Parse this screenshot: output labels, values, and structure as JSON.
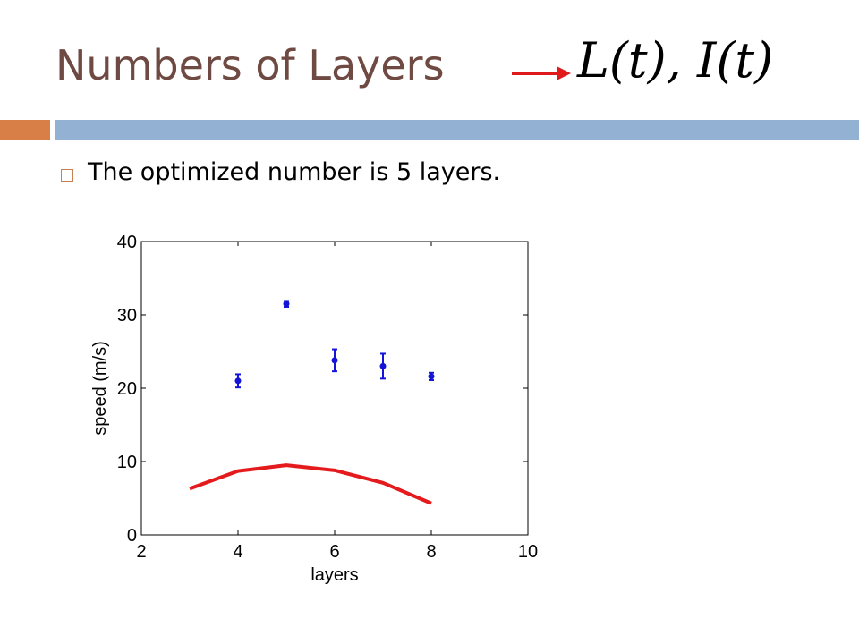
{
  "slide": {
    "title": "Numbers of Layers",
    "formula": "L(t), I(t)",
    "bullet": "The optimized number is 5 layers."
  },
  "colors": {
    "title": "#6f4a43",
    "accent_bar": "#d77f47",
    "main_bar": "#93b2d3",
    "arrow": "#e0191b",
    "points": "#1414d8",
    "line": "#e41a1c"
  },
  "chart_data": {
    "type": "scatter",
    "xlabel": "layers",
    "ylabel": "speed (m/s)",
    "xlim": [
      2,
      10
    ],
    "ylim": [
      0,
      40
    ],
    "xticks": [
      2,
      4,
      6,
      8,
      10
    ],
    "yticks": [
      0,
      10,
      20,
      30,
      40
    ],
    "grid": false,
    "series": [
      {
        "type": "errorbar",
        "color": "#1414d8",
        "x": [
          4,
          5,
          6,
          7,
          8
        ],
        "y": [
          21.0,
          31.5,
          23.8,
          23.0,
          21.6
        ],
        "err": [
          0.9,
          0.4,
          1.5,
          1.7,
          0.5
        ]
      },
      {
        "type": "line",
        "color": "#e41a1c",
        "x": [
          3,
          4,
          5,
          6,
          7,
          8
        ],
        "y": [
          6.3,
          8.7,
          9.5,
          8.8,
          7.1,
          4.3
        ]
      }
    ]
  }
}
